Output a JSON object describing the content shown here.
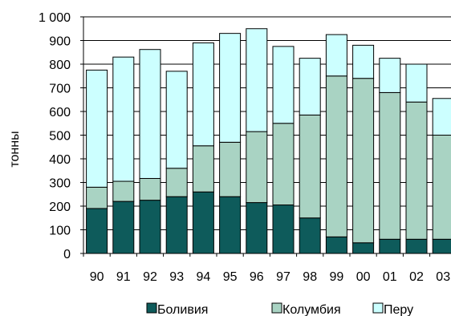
{
  "chart_data": {
    "type": "bar",
    "stacked": true,
    "title": "",
    "xlabel": "",
    "ylabel": "тонны",
    "ylim": [
      0,
      1000
    ],
    "yticks": [
      0,
      100,
      200,
      300,
      400,
      500,
      600,
      700,
      800,
      900,
      1000
    ],
    "ytick_labels": [
      "0",
      "100",
      "200",
      "300",
      "400",
      "500",
      "600",
      "700",
      "800",
      "900",
      "1 000"
    ],
    "grid": "horizontal",
    "legend": "bottom",
    "categories": [
      "90",
      "91",
      "92",
      "93",
      "94",
      "95",
      "96",
      "97",
      "98",
      "99",
      "00",
      "01",
      "02",
      "03"
    ],
    "series": [
      {
        "name": "Боливия",
        "color": "#0e5b5b",
        "values": [
          190,
          220,
          225,
          240,
          260,
          240,
          215,
          205,
          150,
          70,
          45,
          60,
          60,
          60
        ]
      },
      {
        "name": "Колумбия",
        "color": "#a9d3c3",
        "values": [
          90,
          85,
          92,
          120,
          195,
          230,
          300,
          345,
          435,
          680,
          695,
          620,
          580,
          440
        ]
      },
      {
        "name": "Перу",
        "color": "#ccffff",
        "values": [
          495,
          525,
          545,
          410,
          435,
          460,
          435,
          325,
          240,
          175,
          140,
          145,
          160,
          155
        ]
      }
    ]
  }
}
